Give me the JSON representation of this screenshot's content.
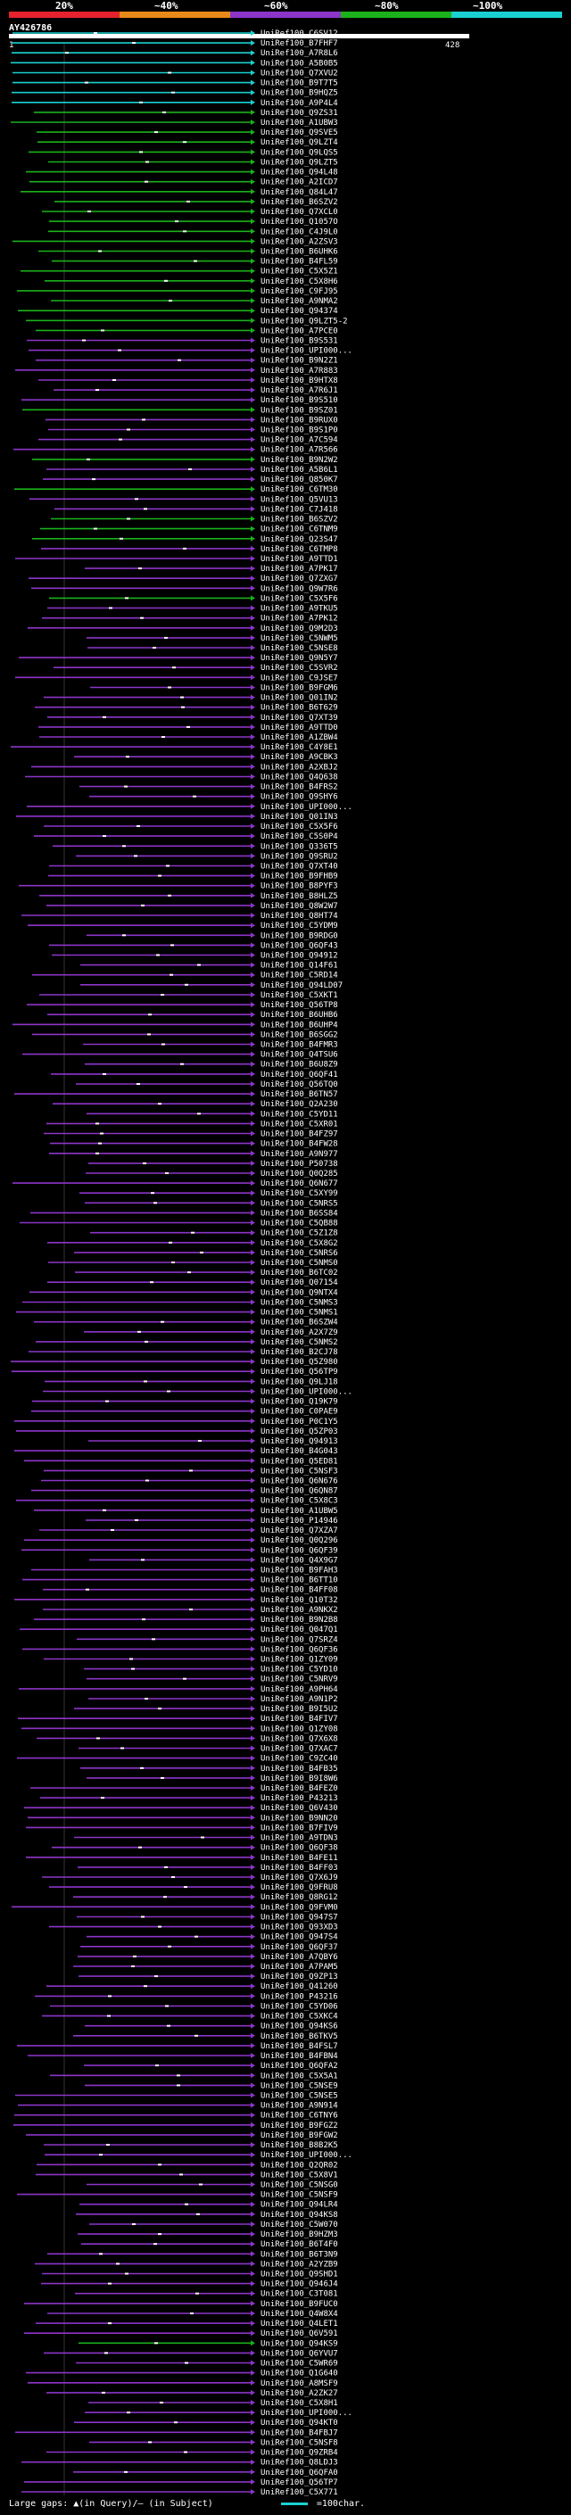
{
  "header": {
    "percent_labels": [
      "20%",
      "~40%",
      "~60%",
      "~80%",
      "~100%"
    ],
    "colors": [
      "#e5222d",
      "#e88a18",
      "#8c35c8",
      "#1bb11b",
      "#1ad1d1"
    ],
    "query_name": "AY426786",
    "query_start": "1",
    "query_end": "428"
  },
  "legend": {
    "gaps_label": "Large gaps: ▲(in Query)/— (in Subject)",
    "scale_label": "=100char."
  },
  "chart_data": {
    "type": "alignment-overview",
    "query_length": 428,
    "hits": [
      [
        "UniRef100_C6SV12",
        4
      ],
      [
        "UniRef100_B7FHF7",
        4
      ],
      [
        "UniRef100_A7R8L6",
        4
      ],
      [
        "UniRef100_A5B0B5",
        4
      ],
      [
        "UniRef100_Q7XVU2",
        4
      ],
      [
        "UniRef100_B9T7T5",
        4
      ],
      [
        "UniRef100_B9HQZ5",
        4
      ],
      [
        "UniRef100_A9P4L4",
        4
      ],
      [
        "UniRef100_Q9ZS31",
        3
      ],
      [
        "UniRef100_A1UBW3",
        3
      ],
      [
        "UniRef100_Q9SVE5",
        3
      ],
      [
        "UniRef100_Q9LZT4",
        3
      ],
      [
        "UniRef100_Q9LQS5",
        3
      ],
      [
        "UniRef100_Q9LZT5",
        3
      ],
      [
        "UniRef100_Q94L48",
        3
      ],
      [
        "UniRef100_A2ICD7",
        3
      ],
      [
        "UniRef100_Q84L47",
        3
      ],
      [
        "UniRef100_B6SZV2",
        3
      ],
      [
        "UniRef100_Q7XCL0",
        3
      ],
      [
        "UniRef100_Q1057O",
        3
      ],
      [
        "UniRef100_C4J9L0",
        3
      ],
      [
        "UniRef100_A2ZSV3",
        3
      ],
      [
        "UniRef100_B6UHK6",
        3
      ],
      [
        "UniRef100_B4FL59",
        3
      ],
      [
        "UniRef100_C5X5Z1",
        3
      ],
      [
        "UniRef100_C5X8H6",
        3
      ],
      [
        "UniRef100_C9FJ95",
        3
      ],
      [
        "UniRef100_A9NMA2",
        3
      ],
      [
        "UniRef100_Q94374",
        3
      ],
      [
        "UniRef100_Q9LZT5-2",
        3
      ],
      [
        "UniRef100_A7PCE0",
        3
      ],
      [
        "UniRef100_B9S531",
        2
      ],
      [
        "UniRef100_UPI000...",
        2
      ],
      [
        "UniRef100_B9N2Z1",
        2
      ],
      [
        "UniRef100_A7R883",
        2
      ],
      [
        "UniRef100_B9HTX8",
        2
      ],
      [
        "UniRef100_A7R6J1",
        2
      ],
      [
        "UniRef100_B9S510",
        2
      ],
      [
        "UniRef100_B9SZ01",
        3
      ],
      [
        "UniRef100_B9RUX0",
        2
      ],
      [
        "UniRef100_B9S1P0",
        2
      ],
      [
        "UniRef100_A7C594",
        2
      ],
      [
        "UniRef100_A7R566",
        2
      ],
      [
        "UniRef100_B9N2W2",
        3
      ],
      [
        "UniRef100_A5B6L1",
        2
      ],
      [
        "UniRef100_Q850K7",
        2
      ],
      [
        "UniRef100_C6TM30",
        3
      ],
      [
        "UniRef100_Q5VU13",
        2
      ],
      [
        "UniRef100_C7J418",
        2
      ],
      [
        "UniRef100_B6SZV2",
        3
      ],
      [
        "UniRef100_C6TNM9",
        3
      ],
      [
        "UniRef100_Q23S47",
        3
      ],
      [
        "UniRef100_C6TMP8",
        2
      ],
      [
        "UniRef100_A9TTD1",
        2
      ],
      [
        "UniRef100_A7PK17",
        2
      ],
      [
        "UniRef100_Q7ZXG7",
        2
      ],
      [
        "UniRef100_Q9W7R6",
        2
      ],
      [
        "UniRef100_C5X5F6",
        3
      ],
      [
        "UniRef100_A9TKU5",
        2
      ],
      [
        "UniRef100_A7PK12",
        2
      ],
      [
        "UniRef100_Q9M2D3",
        2
      ],
      [
        "UniRef100_C5NWM5",
        2
      ],
      [
        "UniRef100_C5NSE8",
        2
      ],
      [
        "UniRef100_Q9N5Y7",
        2
      ],
      [
        "UniRef100_C5SVR2",
        2
      ],
      [
        "UniRef100_C9JSE7",
        2
      ],
      [
        "UniRef100_B9FGM6",
        2
      ],
      [
        "UniRef100_Q01IN2",
        2
      ],
      [
        "UniRef100_B6T629",
        2
      ],
      [
        "UniRef100_Q7XT39",
        2
      ],
      [
        "UniRef100_A9TTD0",
        2
      ],
      [
        "UniRef100_A1ZBW4",
        2
      ],
      [
        "UniRef100_C4Y8E1",
        2
      ],
      [
        "UniRef100_A9CBK3",
        2
      ],
      [
        "UniRef100_A2XBJ2",
        2
      ],
      [
        "UniRef100_Q4Q638",
        2
      ],
      [
        "UniRef100_B4FRS2",
        2
      ],
      [
        "UniRef100_Q9SHY6",
        2
      ],
      [
        "UniRef100_UPI000...",
        2
      ],
      [
        "UniRef100_Q01IN3",
        2
      ],
      [
        "UniRef100_C5X5F6",
        2
      ],
      [
        "UniRef100_C5S0P4",
        2
      ],
      [
        "UniRef100_Q336T5",
        2
      ],
      [
        "UniRef100_Q9SRU2",
        2
      ],
      [
        "UniRef100_Q7XT40",
        2
      ],
      [
        "UniRef100_B9FHB9",
        2
      ],
      [
        "UniRef100_B8PYF3",
        2
      ],
      [
        "UniRef100_B8HLZ5",
        2
      ],
      [
        "UniRef100_Q8W2W7",
        2
      ],
      [
        "UniRef100_Q8HT74",
        2
      ],
      [
        "UniRef100_C5YDM9",
        2
      ],
      [
        "UniRef100_B9RDG0",
        2
      ],
      [
        "UniRef100_Q6QF43",
        2
      ],
      [
        "UniRef100_Q94912",
        2
      ],
      [
        "UniRef100_Q14F61",
        2
      ],
      [
        "UniRef100_C5RD14",
        2
      ],
      [
        "UniRef100_Q94LD07",
        2
      ],
      [
        "UniRef100_C5XKT1",
        2
      ],
      [
        "UniRef100_Q56TP8",
        2
      ],
      [
        "UniRef100_B6UHB6",
        2
      ],
      [
        "UniRef100_B6UHP4",
        2
      ],
      [
        "UniRef100_B6SGG2",
        2
      ],
      [
        "UniRef100_B4FMR3",
        2
      ],
      [
        "UniRef100_Q4TSU6",
        2
      ],
      [
        "UniRef100_B6U8Z9",
        2
      ],
      [
        "UniRef100_Q6QF41",
        2
      ],
      [
        "UniRef100_Q56TQ0",
        2
      ],
      [
        "UniRef100_B6TN57",
        2
      ],
      [
        "UniRef100_Q2A230",
        2
      ],
      [
        "UniRef100_C5YD11",
        2
      ],
      [
        "UniRef100_C5XR01",
        2
      ],
      [
        "UniRef100_B4FZ97",
        2
      ],
      [
        "UniRef100_B4FW28",
        2
      ],
      [
        "UniRef100_A9N977",
        2
      ],
      [
        "UniRef100_P50738",
        2
      ],
      [
        "UniRef100_Q0Q285",
        2
      ],
      [
        "UniRef100_Q6N677",
        2
      ],
      [
        "UniRef100_C5XY99",
        2
      ],
      [
        "UniRef100_C5NRS5",
        2
      ],
      [
        "UniRef100_B6SS84",
        2
      ],
      [
        "UniRef100_C5QB88",
        2
      ],
      [
        "UniRef100_C5Z1Z8",
        2
      ],
      [
        "UniRef100_C5X8G2",
        2
      ],
      [
        "UniRef100_C5NRS6",
        2
      ],
      [
        "UniRef100_C5NMS0",
        2
      ],
      [
        "UniRef100_B6TC02",
        2
      ],
      [
        "UniRef100_Q07154",
        2
      ],
      [
        "UniRef100_Q9NTX4",
        2
      ],
      [
        "UniRef100_C5NMS3",
        2
      ],
      [
        "UniRef100_C5NMS1",
        2
      ],
      [
        "UniRef100_B6SZW4",
        2
      ],
      [
        "UniRef100_A2X7Z9",
        2
      ],
      [
        "UniRef100_C5NMS2",
        2
      ],
      [
        "UniRef100_B2CJ78",
        2
      ],
      [
        "UniRef100_Q5Z980",
        2
      ],
      [
        "UniRef100_Q56TP9",
        2
      ],
      [
        "UniRef100_Q9LJ18",
        2
      ],
      [
        "UniRef100_UPI000...",
        2
      ],
      [
        "UniRef100_Q19K79",
        2
      ],
      [
        "UniRef100_C0PAE9",
        2
      ],
      [
        "UniRef100_P0C1Y5",
        2
      ],
      [
        "UniRef100_Q5ZP03",
        2
      ],
      [
        "UniRef100_Q94913",
        2
      ],
      [
        "UniRef100_B4G043",
        2
      ],
      [
        "UniRef100_Q5ED81",
        2
      ],
      [
        "UniRef100_C5NSF3",
        2
      ],
      [
        "UniRef100_Q6N676",
        2
      ],
      [
        "UniRef100_Q6QN87",
        2
      ],
      [
        "UniRef100_C5X8C3",
        2
      ],
      [
        "UniRef100_A1UBW5",
        2
      ],
      [
        "UniRef100_P14946",
        2
      ],
      [
        "UniRef100_Q7XZA7",
        2
      ],
      [
        "UniRef100_Q0Q296",
        2
      ],
      [
        "UniRef100_Q6QF39",
        2
      ],
      [
        "UniRef100_Q4X9G7",
        2
      ],
      [
        "UniRef100_B9FAH3",
        2
      ],
      [
        "UniRef100_B6TT10",
        2
      ],
      [
        "UniRef100_B4FF08",
        2
      ],
      [
        "UniRef100_Q10T32",
        2
      ],
      [
        "UniRef100_A9NKX2",
        2
      ],
      [
        "UniRef100_B9N2B8",
        2
      ],
      [
        "UniRef100_Q047Q1",
        2
      ],
      [
        "UniRef100_Q7SRZ4",
        2
      ],
      [
        "UniRef100_Q6QF36",
        2
      ],
      [
        "UniRef100_Q1ZY09",
        2
      ],
      [
        "UniRef100_C5YD10",
        2
      ],
      [
        "UniRef100_C5NRV9",
        2
      ],
      [
        "UniRef100_A9PH64",
        2
      ],
      [
        "UniRef100_A9N1P2",
        2
      ],
      [
        "UniRef100_B9I5U2",
        2
      ],
      [
        "UniRef100_B4FIV7",
        2
      ],
      [
        "UniRef100_Q1ZY08",
        2
      ],
      [
        "UniRef100_Q7X6X8",
        2
      ],
      [
        "UniRef100_Q7XAC7",
        2
      ],
      [
        "UniRef100_C9ZC40",
        2
      ],
      [
        "UniRef100_B4FB35",
        2
      ],
      [
        "UniRef100_B9I8W6",
        2
      ],
      [
        "UniRef100_B4FEZ0",
        2
      ],
      [
        "UniRef100_P43213",
        2
      ],
      [
        "UniRef100_Q6V430",
        2
      ],
      [
        "UniRef100_B9NN20",
        2
      ],
      [
        "UniRef100_B7FIV9",
        2
      ],
      [
        "UniRef100_A9TDN3",
        2
      ],
      [
        "UniRef100_Q6QF38",
        2
      ],
      [
        "UniRef100_B4FE11",
        2
      ],
      [
        "UniRef100_B4FF03",
        2
      ],
      [
        "UniRef100_Q7X6J9",
        2
      ],
      [
        "UniRef100_Q9FRU8",
        2
      ],
      [
        "UniRef100_Q8RG12",
        2
      ],
      [
        "UniRef100_Q9FVM0",
        2
      ],
      [
        "UniRef100_Q947S7",
        2
      ],
      [
        "UniRef100_Q93XD3",
        2
      ],
      [
        "UniRef100_Q947S4",
        2
      ],
      [
        "UniRef100_Q6QF37",
        2
      ],
      [
        "UniRef100_A7QBY6",
        2
      ],
      [
        "UniRef100_A7PAM5",
        2
      ],
      [
        "UniRef100_Q9ZP13",
        2
      ],
      [
        "UniRef100_Q41260",
        2
      ],
      [
        "UniRef100_P43216",
        2
      ],
      [
        "UniRef100_C5YD06",
        2
      ],
      [
        "UniRef100_C5XKC4",
        2
      ],
      [
        "UniRef100_Q94KS6",
        2
      ],
      [
        "UniRef100_B6TKV5",
        2
      ],
      [
        "UniRef100_B4FSL7",
        2
      ],
      [
        "UniRef100_B4FBN4",
        2
      ],
      [
        "UniRef100_Q6QFA2",
        2
      ],
      [
        "UniRef100_C5X5A1",
        2
      ],
      [
        "UniRef100_C5NSE9",
        2
      ],
      [
        "UniRef100_C5NSE5",
        2
      ],
      [
        "UniRef100_A9N914",
        2
      ],
      [
        "UniRef100_C6TNY6",
        2
      ],
      [
        "UniRef100_B9FGZ2",
        2
      ],
      [
        "UniRef100_B9FGW2",
        2
      ],
      [
        "UniRef100_B8B2K5",
        2
      ],
      [
        "UniRef100_UPI000...",
        2
      ],
      [
        "UniRef100_Q2QR02",
        2
      ],
      [
        "UniRef100_C5X8V1",
        2
      ],
      [
        "UniRef100_C5NSG0",
        2
      ],
      [
        "UniRef100_C5NSF9",
        2
      ],
      [
        "UniRef100_Q94LR4",
        2
      ],
      [
        "UniRef100_Q94KS8",
        2
      ],
      [
        "UniRef100_C5W070",
        2
      ],
      [
        "UniRef100_B9HZM3",
        2
      ],
      [
        "UniRef100_B6T4F0",
        2
      ],
      [
        "UniRef100_B6T3N9",
        2
      ],
      [
        "UniRef100_A2YZB9",
        2
      ],
      [
        "UniRef100_Q9SHD1",
        2
      ],
      [
        "UniRef100_Q946J4",
        2
      ],
      [
        "UniRef100_C3T081",
        2
      ],
      [
        "UniRef100_B9FUC0",
        2
      ],
      [
        "UniRef100_Q4W8X4",
        2
      ],
      [
        "UniRef100_Q4LET1",
        2
      ],
      [
        "UniRef100_Q6V591",
        2
      ],
      [
        "UniRef100_Q94KS9",
        3
      ],
      [
        "UniRef100_Q6YVU7",
        2
      ],
      [
        "UniRef100_C5WR69",
        2
      ],
      [
        "UniRef100_Q1G640",
        2
      ],
      [
        "UniRef100_A8MSF9",
        2
      ],
      [
        "UniRef100_A2ZK27",
        2
      ],
      [
        "UniRef100_C5X8H1",
        2
      ],
      [
        "UniRef100_UPI000...",
        2
      ],
      [
        "UniRef100_Q94KT0",
        2
      ],
      [
        "UniRef100_B4FBJ7",
        2
      ],
      [
        "UniRef100_C5NSF8",
        2
      ],
      [
        "UniRef100_Q9ZRB4",
        2
      ],
      [
        "UniRef100_Q8LDJ3",
        2
      ],
      [
        "UniRef100_Q6QFA0",
        2
      ],
      [
        "UniRef100_Q56TP7",
        2
      ],
      [
        "UniRef100_C5X771",
        2
      ]
    ]
  }
}
